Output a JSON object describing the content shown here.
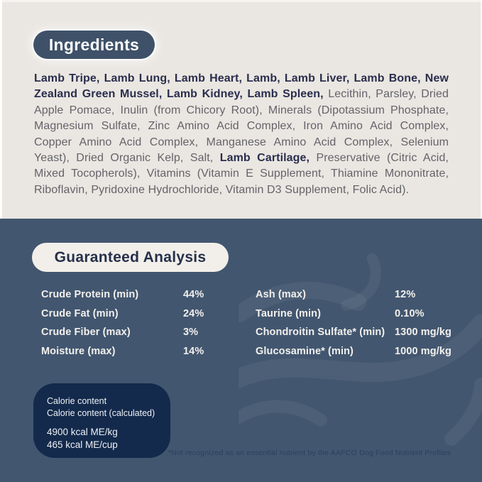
{
  "colors": {
    "cream_background": "#EAE6E1",
    "blue_background": "#42566F",
    "pill_navy": "#3E5168",
    "pill_cream": "#F2EFEA",
    "calorie_box_navy": "#132A4C",
    "ingredient_bold_text": "#292E4D",
    "ingredient_body_text": "#63636A",
    "analysis_text": "#F2F0ED",
    "footnote_text": "#2C3F5F"
  },
  "ingredients": {
    "heading": "Ingredients",
    "lines": [
      {
        "justify": true,
        "segments": [
          {
            "text": "Lamb Tripe, Lamb Lung, Lamb Heart, Lamb, Lamb Liver, Lamb Bone, New",
            "bold": true
          }
        ]
      },
      {
        "justify": true,
        "segments": [
          {
            "text": "Zealand Green Mussel, Lamb Kidney, Lamb Spleen,",
            "bold": true
          },
          {
            "text": " Lecithin, Parsley, Dried",
            "bold": false
          }
        ]
      },
      {
        "justify": true,
        "segments": [
          {
            "text": "Apple Pomace, Inulin (from Chicory Root), Minerals (Dipotassium Phosphate,",
            "bold": false
          }
        ]
      },
      {
        "justify": true,
        "segments": [
          {
            "text": "Magnesium Sulfate, Zinc Amino Acid Complex, Iron Amino Acid Complex,",
            "bold": false
          }
        ]
      },
      {
        "justify": true,
        "segments": [
          {
            "text": "Copper Amino Acid Complex, Manganese Amino Acid Complex, Selenium",
            "bold": false
          }
        ]
      },
      {
        "justify": true,
        "segments": [
          {
            "text": "Yeast), Dried Organic Kelp, Salt,",
            "bold": false
          },
          {
            "text": " Lamb Cartilage,",
            "bold": true
          },
          {
            "text": " Preservative (Citric Acid,",
            "bold": false
          }
        ]
      },
      {
        "justify": true,
        "segments": [
          {
            "text": "Mixed Tocopherols), Vitamins (Vitamin E Supplement, Thiamine Mononitrate,",
            "bold": false
          }
        ]
      },
      {
        "justify": false,
        "segments": [
          {
            "text": "Riboflavin, Pyridoxine Hydrochloride, Vitamin D3 Supplement, Folic Acid).",
            "bold": false
          }
        ]
      }
    ]
  },
  "analysis": {
    "heading": "Guaranteed Analysis",
    "left_column": [
      {
        "label": "Crude Protein (min)",
        "value": "44%"
      },
      {
        "label": "Crude Fat (min)",
        "value": "24%"
      },
      {
        "label": "Crude Fiber (max)",
        "value": "3%"
      },
      {
        "label": "Moisture (max)",
        "value": "14%"
      }
    ],
    "right_column": [
      {
        "label": "Ash (max)",
        "value": "12%"
      },
      {
        "label": "Taurine (min)",
        "value": "0.10%"
      },
      {
        "label": "Chondroitin Sulfate* (min)",
        "value": "1300 mg/kg"
      },
      {
        "label": "Glucosamine* (min)",
        "value": "1000 mg/kg"
      }
    ],
    "footnote": "*Not recognized as an essential nutrient by the AAFCO Dog Food Nutrient Profiles"
  },
  "calorie_box": {
    "title_lines": [
      "Calorie content",
      "Calorie content (calculated)"
    ],
    "value_lines": [
      "4900 kcal ME/kg",
      "465 kcal ME/cup"
    ]
  }
}
